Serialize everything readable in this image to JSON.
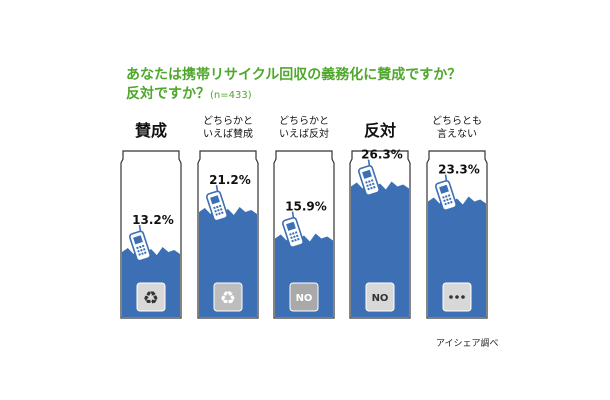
{
  "title_line1": "あなたは携帯リサイクル回収の義務化に賛成ですか？",
  "title_line2": "反対ですか？",
  "sample_note": "(n=433)",
  "source": "アイシェア調べ",
  "chart_data": {
    "type": "bar",
    "title": "あなたは携帯リサイクル回収の義務化に賛成ですか？反対ですか？",
    "sample": "(n=433)",
    "categories": [
      [
        "賛成"
      ],
      [
        "どちらかと",
        "いえば賛成"
      ],
      [
        "どちらかと",
        "いえば反対"
      ],
      [
        "反対"
      ],
      [
        "どちらとも",
        "言えない"
      ]
    ],
    "values": [
      13.2,
      21.2,
      15.9,
      26.3,
      23.3
    ],
    "value_labels": [
      "13.2%",
      "21.2%",
      "15.9%",
      "26.3%",
      "23.3%"
    ],
    "ylim": [
      0,
      30
    ],
    "grid": false,
    "badges": [
      "recycle-icon",
      "recycle-icon",
      "NO",
      "NO",
      "…"
    ],
    "colors": {
      "fill": "#3d6fb4",
      "outline": "#333333",
      "title": "#4ea82b"
    }
  }
}
